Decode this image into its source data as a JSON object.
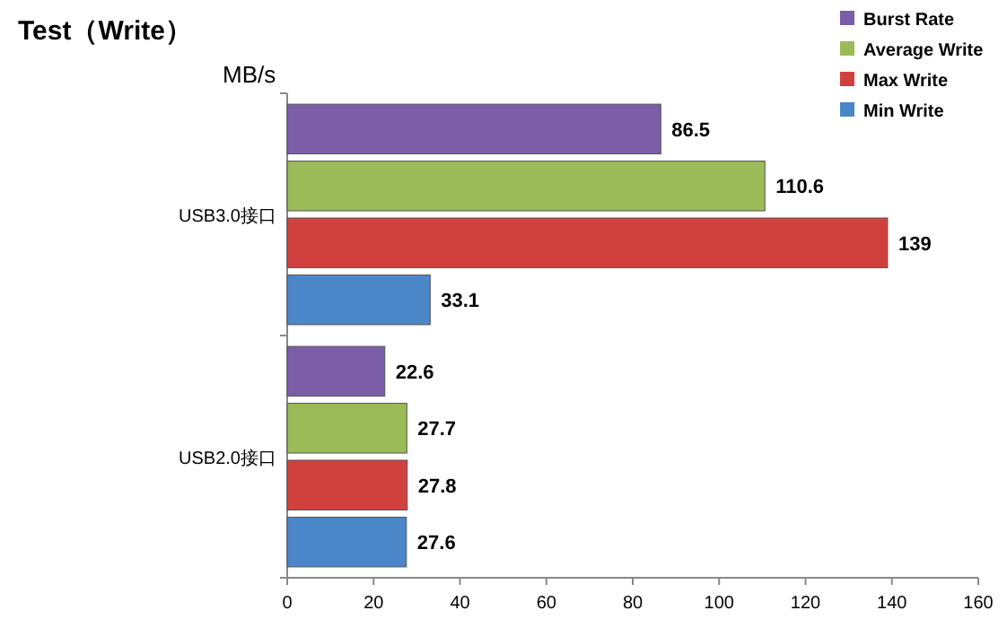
{
  "chart_data": {
    "type": "bar",
    "orientation": "horizontal",
    "title": "Test（Write）",
    "annotations": [
      "MB/s"
    ],
    "categories": [
      "USB3.0接口",
      "USB2.0接口"
    ],
    "series": [
      {
        "name": "Burst Rate",
        "color": "#7b5ea7",
        "values": [
          86.5,
          22.6
        ]
      },
      {
        "name": "Average Write",
        "color": "#9bbb59",
        "values": [
          110.6,
          27.7
        ]
      },
      {
        "name": "Max Write",
        "color": "#d0413d",
        "values": [
          139,
          27.8
        ]
      },
      {
        "name": "Min Write",
        "color": "#4a86c8",
        "values": [
          33.1,
          27.6
        ]
      }
    ],
    "xlim": [
      0,
      160
    ],
    "xticks": [
      0,
      20,
      40,
      60,
      80,
      100,
      120,
      140,
      160
    ],
    "legend": "top right",
    "data_labels": true
  }
}
